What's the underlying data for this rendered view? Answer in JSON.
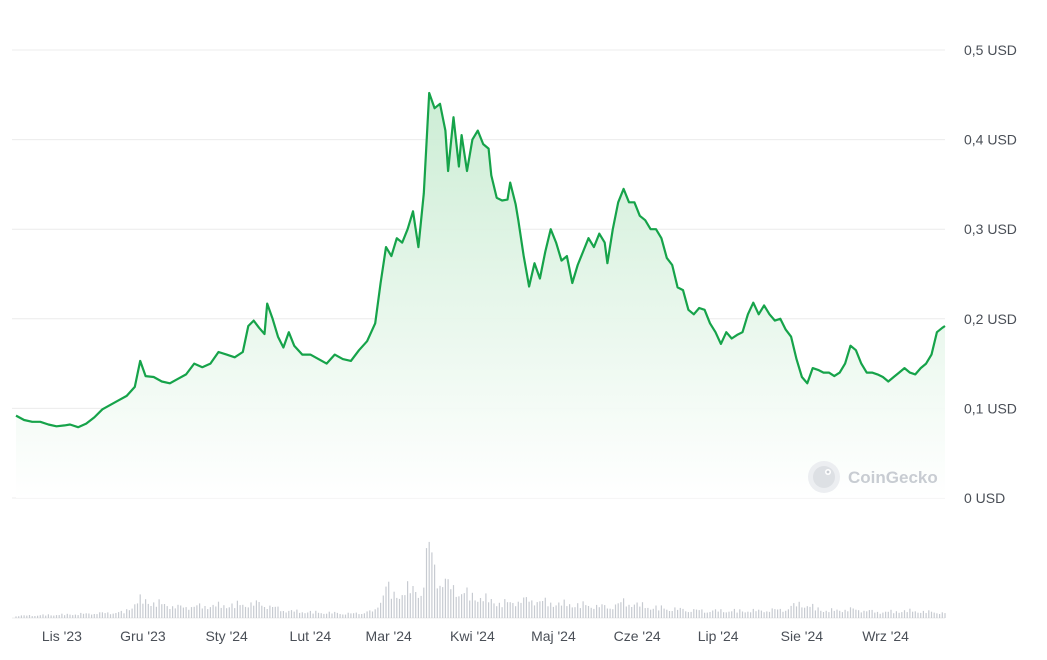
{
  "watermark": {
    "text": "CoinGecko",
    "icon": "gecko-logo-icon"
  },
  "colors": {
    "line": "#16a34a",
    "fill_top": "#c9ecd2",
    "fill_bottom": "#ffffff",
    "grid": "#ececec",
    "volume": "#c7cbd1"
  },
  "chart_data": {
    "type": "area",
    "currency": "USD",
    "y_tick_labels": [
      "0 USD",
      "0,1 USD",
      "0,2 USD",
      "0,3 USD",
      "0,4 USD",
      "0,5 USD"
    ],
    "y_ticks": [
      0,
      0.1,
      0.2,
      0.3,
      0.4,
      0.5
    ],
    "ylim": [
      0,
      0.5
    ],
    "x_tick_labels": [
      "Lis '23",
      "Gru '23",
      "Sty '24",
      "Lut '24",
      "Mar '24",
      "Kwi '24",
      "Maj '24",
      "Cze '24",
      "Lip '24",
      "Sie '24",
      "Wrz '24"
    ],
    "x_tick_days": [
      17,
      47,
      78,
      109,
      138,
      169,
      199,
      230,
      260,
      291,
      322
    ],
    "x_unit": "days from start of series",
    "xlim": [
      0,
      344
    ],
    "price": [
      [
        0,
        0.092
      ],
      [
        3,
        0.087
      ],
      [
        6,
        0.085
      ],
      [
        9,
        0.085
      ],
      [
        12,
        0.082
      ],
      [
        15,
        0.08
      ],
      [
        18,
        0.081
      ],
      [
        20,
        0.082
      ],
      [
        23,
        0.079
      ],
      [
        26,
        0.083
      ],
      [
        29,
        0.09
      ],
      [
        32,
        0.099
      ],
      [
        35,
        0.104
      ],
      [
        38,
        0.109
      ],
      [
        41,
        0.114
      ],
      [
        44,
        0.124
      ],
      [
        46,
        0.153
      ],
      [
        48,
        0.136
      ],
      [
        51,
        0.135
      ],
      [
        54,
        0.13
      ],
      [
        57,
        0.128
      ],
      [
        60,
        0.133
      ],
      [
        63,
        0.138
      ],
      [
        66,
        0.15
      ],
      [
        69,
        0.146
      ],
      [
        72,
        0.15
      ],
      [
        75,
        0.163
      ],
      [
        78,
        0.16
      ],
      [
        81,
        0.157
      ],
      [
        84,
        0.163
      ],
      [
        86,
        0.192
      ],
      [
        88,
        0.198
      ],
      [
        90,
        0.19
      ],
      [
        92,
        0.183
      ],
      [
        93,
        0.217
      ],
      [
        95,
        0.2
      ],
      [
        97,
        0.18
      ],
      [
        99,
        0.168
      ],
      [
        101,
        0.185
      ],
      [
        103,
        0.17
      ],
      [
        106,
        0.16
      ],
      [
        109,
        0.16
      ],
      [
        112,
        0.155
      ],
      [
        115,
        0.15
      ],
      [
        118,
        0.16
      ],
      [
        121,
        0.155
      ],
      [
        124,
        0.153
      ],
      [
        127,
        0.165
      ],
      [
        130,
        0.175
      ],
      [
        133,
        0.195
      ],
      [
        135,
        0.24
      ],
      [
        137,
        0.28
      ],
      [
        139,
        0.27
      ],
      [
        141,
        0.29
      ],
      [
        143,
        0.285
      ],
      [
        145,
        0.3
      ],
      [
        147,
        0.32
      ],
      [
        149,
        0.28
      ],
      [
        151,
        0.34
      ],
      [
        153,
        0.452
      ],
      [
        155,
        0.435
      ],
      [
        157,
        0.44
      ],
      [
        159,
        0.41
      ],
      [
        160,
        0.365
      ],
      [
        162,
        0.425
      ],
      [
        164,
        0.37
      ],
      [
        165,
        0.405
      ],
      [
        167,
        0.365
      ],
      [
        169,
        0.4
      ],
      [
        171,
        0.41
      ],
      [
        173,
        0.395
      ],
      [
        175,
        0.39
      ],
      [
        176,
        0.36
      ],
      [
        178,
        0.335
      ],
      [
        180,
        0.332
      ],
      [
        182,
        0.333
      ],
      [
        183,
        0.352
      ],
      [
        185,
        0.328
      ],
      [
        186,
        0.31
      ],
      [
        188,
        0.27
      ],
      [
        190,
        0.236
      ],
      [
        192,
        0.262
      ],
      [
        194,
        0.245
      ],
      [
        196,
        0.275
      ],
      [
        198,
        0.3
      ],
      [
        200,
        0.285
      ],
      [
        202,
        0.265
      ],
      [
        204,
        0.27
      ],
      [
        206,
        0.24
      ],
      [
        208,
        0.26
      ],
      [
        210,
        0.275
      ],
      [
        212,
        0.29
      ],
      [
        214,
        0.28
      ],
      [
        216,
        0.295
      ],
      [
        218,
        0.285
      ],
      [
        219,
        0.262
      ],
      [
        221,
        0.3
      ],
      [
        223,
        0.33
      ],
      [
        225,
        0.345
      ],
      [
        227,
        0.33
      ],
      [
        229,
        0.33
      ],
      [
        231,
        0.315
      ],
      [
        233,
        0.31
      ],
      [
        235,
        0.3
      ],
      [
        237,
        0.3
      ],
      [
        239,
        0.29
      ],
      [
        241,
        0.268
      ],
      [
        243,
        0.26
      ],
      [
        245,
        0.235
      ],
      [
        247,
        0.232
      ],
      [
        249,
        0.21
      ],
      [
        251,
        0.205
      ],
      [
        253,
        0.212
      ],
      [
        255,
        0.21
      ],
      [
        257,
        0.195
      ],
      [
        259,
        0.185
      ],
      [
        261,
        0.172
      ],
      [
        263,
        0.185
      ],
      [
        265,
        0.178
      ],
      [
        267,
        0.182
      ],
      [
        269,
        0.185
      ],
      [
        271,
        0.205
      ],
      [
        273,
        0.218
      ],
      [
        275,
        0.205
      ],
      [
        277,
        0.215
      ],
      [
        279,
        0.205
      ],
      [
        281,
        0.198
      ],
      [
        283,
        0.2
      ],
      [
        285,
        0.188
      ],
      [
        287,
        0.18
      ],
      [
        289,
        0.155
      ],
      [
        291,
        0.135
      ],
      [
        293,
        0.128
      ],
      [
        295,
        0.145
      ],
      [
        297,
        0.143
      ],
      [
        299,
        0.14
      ],
      [
        301,
        0.14
      ],
      [
        303,
        0.136
      ],
      [
        305,
        0.14
      ],
      [
        307,
        0.15
      ],
      [
        309,
        0.17
      ],
      [
        311,
        0.165
      ],
      [
        313,
        0.15
      ],
      [
        315,
        0.14
      ],
      [
        317,
        0.14
      ],
      [
        319,
        0.138
      ],
      [
        321,
        0.135
      ],
      [
        323,
        0.13
      ],
      [
        325,
        0.135
      ],
      [
        327,
        0.14
      ],
      [
        329,
        0.145
      ],
      [
        331,
        0.14
      ],
      [
        333,
        0.138
      ],
      [
        335,
        0.145
      ],
      [
        337,
        0.15
      ],
      [
        339,
        0.16
      ],
      [
        341,
        0.185
      ],
      [
        343,
        0.19
      ],
      [
        344,
        0.192
      ]
    ],
    "volume_relative": [
      [
        0,
        0.03
      ],
      [
        20,
        0.05
      ],
      [
        40,
        0.08
      ],
      [
        46,
        0.25
      ],
      [
        60,
        0.15
      ],
      [
        80,
        0.18
      ],
      [
        90,
        0.2
      ],
      [
        100,
        0.1
      ],
      [
        110,
        0.08
      ],
      [
        125,
        0.06
      ],
      [
        133,
        0.1
      ],
      [
        137,
        0.45
      ],
      [
        140,
        0.3
      ],
      [
        145,
        0.4
      ],
      [
        150,
        0.35
      ],
      [
        153,
        1.0
      ],
      [
        156,
        0.55
      ],
      [
        160,
        0.45
      ],
      [
        165,
        0.35
      ],
      [
        170,
        0.3
      ],
      [
        180,
        0.2
      ],
      [
        190,
        0.25
      ],
      [
        200,
        0.2
      ],
      [
        210,
        0.18
      ],
      [
        220,
        0.15
      ],
      [
        225,
        0.22
      ],
      [
        235,
        0.15
      ],
      [
        245,
        0.12
      ],
      [
        255,
        0.1
      ],
      [
        265,
        0.1
      ],
      [
        275,
        0.1
      ],
      [
        285,
        0.12
      ],
      [
        290,
        0.2
      ],
      [
        300,
        0.1
      ],
      [
        310,
        0.12
      ],
      [
        320,
        0.08
      ],
      [
        330,
        0.1
      ],
      [
        340,
        0.08
      ],
      [
        344,
        0.07
      ]
    ]
  }
}
